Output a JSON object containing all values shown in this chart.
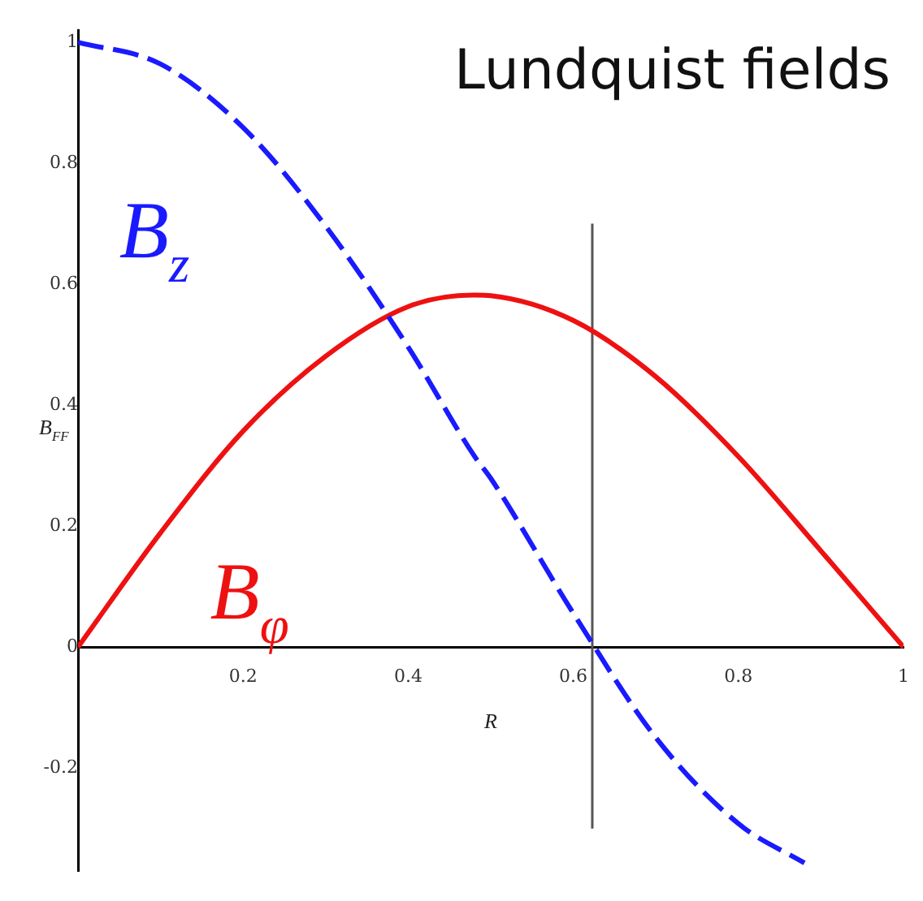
{
  "chart_data": {
    "type": "line",
    "title": "Lundquist fields",
    "xlabel": "R",
    "ylabel": "B$_{FF}$",
    "xlim": [
      0,
      1
    ],
    "ylim": [
      -0.37,
      1.02
    ],
    "xticks": [
      0.2,
      0.4,
      0.6,
      0.8,
      1
    ],
    "yticks": [
      -0.2,
      0,
      0.2,
      0.4,
      0.6,
      0.8,
      1
    ],
    "grid": false,
    "legend": false,
    "marker": "none",
    "series": [
      {
        "name": "B$_{z}$",
        "color": "#1a1aff",
        "line_style": "dashed",
        "x": [
          0,
          0.1,
          0.2,
          0.3,
          0.4,
          0.48,
          0.5,
          0.6,
          0.7,
          0.8,
          0.88
        ],
        "values": [
          1,
          0.964,
          0.859,
          0.696,
          0.496,
          0.316,
          0.279,
          0.056,
          -0.15,
          -0.292,
          -0.357
        ]
      },
      {
        "name": "B$_{φ}$",
        "color": "#ee1111",
        "line_style": "solid",
        "x": [
          0,
          0.1,
          0.2,
          0.3,
          0.4,
          0.48,
          0.5,
          0.6,
          0.7,
          0.8,
          0.9,
          1
        ],
        "values": [
          0,
          0.189,
          0.357,
          0.481,
          0.563,
          0.582,
          0.581,
          0.54,
          0.447,
          0.315,
          0.159,
          0
        ]
      },
      {
        "color": "#555555",
        "line_style": "solid",
        "x": [
          0.623,
          0.623
        ],
        "values": [
          0.7,
          -0.3
        ]
      }
    ]
  }
}
